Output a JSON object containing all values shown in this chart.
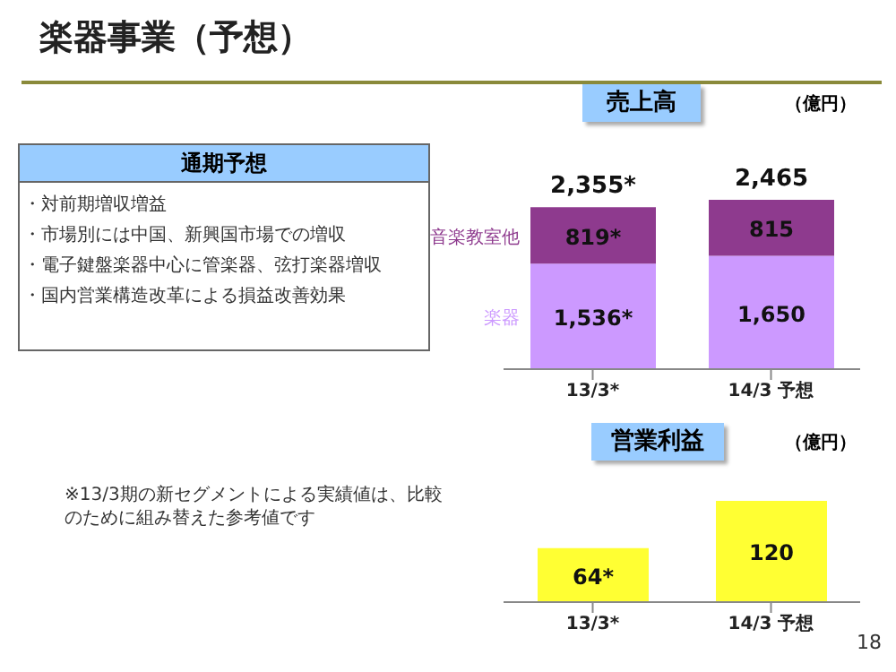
{
  "chart_data": [
    {
      "type": "other",
      "title": "楽器事業（予想）",
      "subtitle": "通期予想",
      "annotations": [
        "・対前期増収増益",
        "・市場別には中国、新興国市場での増収",
        "・電子鍵盤楽器中心に管楽器、弦打楽器増収",
        "・国内営業構造改革による損益改善効果",
        "※13/3期の新セグメントによる実績値は、比較のために組み替えた参考値です",
        "18"
      ]
    },
    {
      "type": "bar",
      "title": "売上高",
      "ylabel": "（億円）",
      "categories": [
        "13/3*",
        "14/3 予想"
      ],
      "stacked": true,
      "series": [
        {
          "name": "楽器",
          "color": "#cc99ff",
          "values": [
            1536,
            1650
          ],
          "value_labels": [
            "1,536*",
            "1,650"
          ]
        },
        {
          "name": "音楽教室他",
          "color": "#8e3a8e",
          "values": [
            819,
            815
          ],
          "value_labels": [
            "819*",
            "815"
          ]
        }
      ],
      "totals": [
        "2,355*",
        "2,465"
      ]
    },
    {
      "type": "bar",
      "title": "営業利益",
      "ylabel": "（億円）",
      "categories": [
        "13/3*",
        "14/3 予想"
      ],
      "values": [
        64,
        120
      ],
      "color": "#ffff33",
      "value_labels": [
        "64*",
        "120"
      ]
    }
  ]
}
